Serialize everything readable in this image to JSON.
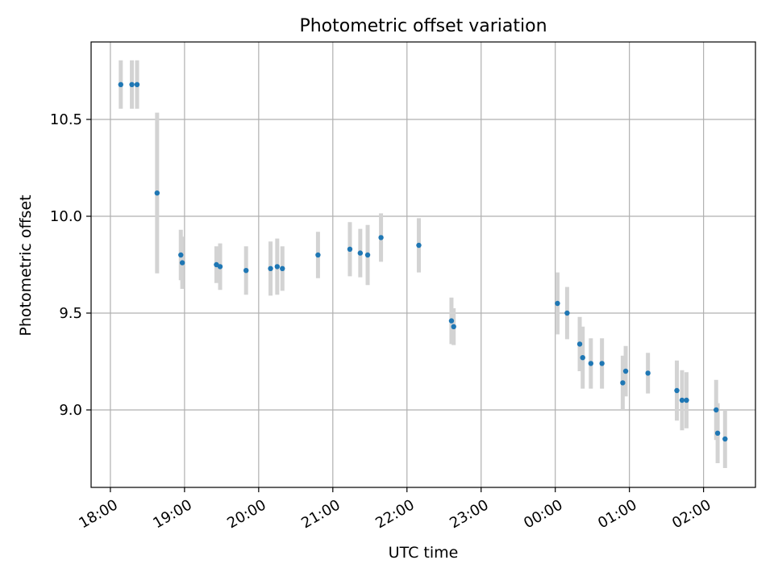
{
  "chart_data": {
    "type": "scatter",
    "title": "Photometric offset variation",
    "xlabel": "UTC time",
    "ylabel": "Photometric offset",
    "grid": true,
    "colors": {
      "point": "#1f77b4",
      "errorbar": "#d3d3d3",
      "grid": "#b0b0b0",
      "axis": "#000000"
    },
    "x_unit": "hours since 18:00 UTC",
    "xlim": [
      -0.26,
      8.7
    ],
    "ylim": [
      8.6,
      10.9
    ],
    "xticks": [
      {
        "value": 0,
        "label": "18:00"
      },
      {
        "value": 1,
        "label": "19:00"
      },
      {
        "value": 2,
        "label": "20:00"
      },
      {
        "value": 3,
        "label": "21:00"
      },
      {
        "value": 4,
        "label": "22:00"
      },
      {
        "value": 5,
        "label": "23:00"
      },
      {
        "value": 6,
        "label": "00:00"
      },
      {
        "value": 7,
        "label": "01:00"
      },
      {
        "value": 8,
        "label": "02:00"
      }
    ],
    "yticks": [
      {
        "value": 9.0,
        "label": "9.0"
      },
      {
        "value": 9.5,
        "label": "9.5"
      },
      {
        "value": 10.0,
        "label": "10.0"
      },
      {
        "value": 10.5,
        "label": "10.5"
      }
    ],
    "points": [
      {
        "x": 0.14,
        "y": 10.68,
        "err": 0.125
      },
      {
        "x": 0.29,
        "y": 10.68,
        "err": 0.125
      },
      {
        "x": 0.36,
        "y": 10.68,
        "err": 0.125
      },
      {
        "x": 0.63,
        "y": 10.12,
        "err": 0.415
      },
      {
        "x": 0.95,
        "y": 9.8,
        "err": 0.13
      },
      {
        "x": 0.97,
        "y": 9.76,
        "err": 0.135
      },
      {
        "x": 1.43,
        "y": 9.75,
        "err": 0.095
      },
      {
        "x": 1.48,
        "y": 9.74,
        "err": 0.12
      },
      {
        "x": 1.83,
        "y": 9.72,
        "err": 0.125
      },
      {
        "x": 2.16,
        "y": 9.73,
        "err": 0.14
      },
      {
        "x": 2.25,
        "y": 9.74,
        "err": 0.145
      },
      {
        "x": 2.32,
        "y": 9.73,
        "err": 0.115
      },
      {
        "x": 2.8,
        "y": 9.8,
        "err": 0.12
      },
      {
        "x": 3.23,
        "y": 9.83,
        "err": 0.14
      },
      {
        "x": 3.37,
        "y": 9.81,
        "err": 0.125
      },
      {
        "x": 3.47,
        "y": 9.8,
        "err": 0.155
      },
      {
        "x": 3.65,
        "y": 9.89,
        "err": 0.125
      },
      {
        "x": 4.16,
        "y": 9.85,
        "err": 0.14
      },
      {
        "x": 4.6,
        "y": 9.46,
        "err": 0.12
      },
      {
        "x": 4.63,
        "y": 9.43,
        "err": 0.095
      },
      {
        "x": 6.03,
        "y": 9.55,
        "err": 0.16
      },
      {
        "x": 6.16,
        "y": 9.5,
        "err": 0.135
      },
      {
        "x": 6.33,
        "y": 9.34,
        "err": 0.14
      },
      {
        "x": 6.37,
        "y": 9.27,
        "err": 0.16
      },
      {
        "x": 6.48,
        "y": 9.24,
        "err": 0.13
      },
      {
        "x": 6.63,
        "y": 9.24,
        "err": 0.13
      },
      {
        "x": 6.91,
        "y": 9.14,
        "err": 0.14
      },
      {
        "x": 6.95,
        "y": 9.2,
        "err": 0.13
      },
      {
        "x": 7.25,
        "y": 9.19,
        "err": 0.105
      },
      {
        "x": 7.64,
        "y": 9.1,
        "err": 0.155
      },
      {
        "x": 7.71,
        "y": 9.05,
        "err": 0.155
      },
      {
        "x": 7.77,
        "y": 9.05,
        "err": 0.145
      },
      {
        "x": 8.17,
        "y": 9.0,
        "err": 0.155
      },
      {
        "x": 8.19,
        "y": 8.88,
        "err": 0.155
      },
      {
        "x": 8.29,
        "y": 8.85,
        "err": 0.15
      }
    ]
  }
}
